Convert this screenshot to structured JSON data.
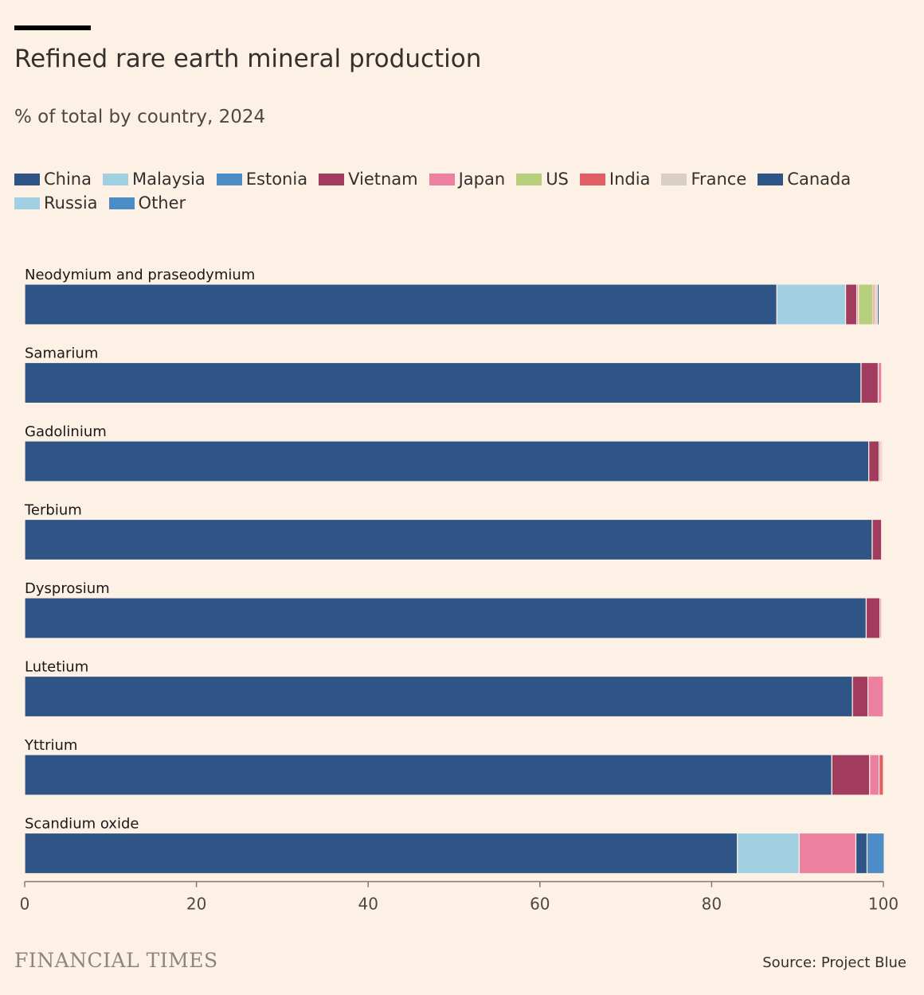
{
  "header": {
    "title": "Refined rare earth mineral production",
    "subtitle": "% of total by country, 2024"
  },
  "legend": [
    {
      "label": "China",
      "color": "#2f5486"
    },
    {
      "label": "Malaysia",
      "color": "#a1d0e2"
    },
    {
      "label": "Estonia",
      "color": "#4c8dc7"
    },
    {
      "label": "Vietnam",
      "color": "#a23c5e"
    },
    {
      "label": "Japan",
      "color": "#ec80a0"
    },
    {
      "label": "US",
      "color": "#b8cf7d"
    },
    {
      "label": "India",
      "color": "#e25f66"
    },
    {
      "label": "France",
      "color": "#d9cfc6"
    },
    {
      "label": "Canada",
      "color": "#2f5486"
    },
    {
      "label": "Russia",
      "color": "#a1d0e2"
    },
    {
      "label": "Other",
      "color": "#4c8dc7"
    }
  ],
  "chart_data": {
    "type": "bar",
    "orientation": "horizontal",
    "stacked": true,
    "title": "Refined rare earth mineral production",
    "subtitle": "% of total by country, 2024",
    "xlim": [
      0,
      100
    ],
    "xticks": [
      0,
      20,
      40,
      60,
      80,
      100
    ],
    "categories": [
      "Neodymium and praseodymium",
      "Samarium",
      "Gadolinium",
      "Terbium",
      "Dysprosium",
      "Lutetium",
      "Yttrium",
      "Scandium oxide"
    ],
    "series": [
      {
        "name": "China",
        "values": [
          87.6,
          97.4,
          98.3,
          98.7,
          98.0,
          96.4,
          94.0,
          83.0
        ]
      },
      {
        "name": "Malaysia",
        "values": [
          8.0,
          0,
          0,
          0,
          0,
          0,
          0,
          7.2
        ]
      },
      {
        "name": "Estonia",
        "values": [
          0,
          0,
          0,
          0,
          0,
          0,
          0,
          0
        ]
      },
      {
        "name": "Vietnam",
        "values": [
          1.3,
          2.0,
          1.2,
          1.1,
          1.6,
          1.8,
          4.4,
          0
        ]
      },
      {
        "name": "Japan",
        "values": [
          0.2,
          0.4,
          0.2,
          0.1,
          0.2,
          1.8,
          1.1,
          6.6
        ]
      },
      {
        "name": "US",
        "values": [
          1.7,
          0,
          0,
          0,
          0,
          0,
          0,
          0
        ]
      },
      {
        "name": "India",
        "values": [
          0.2,
          0,
          0,
          0.1,
          0.1,
          0,
          0.5,
          0
        ]
      },
      {
        "name": "France",
        "values": [
          0.3,
          0,
          0.2,
          0,
          0,
          0,
          0,
          0
        ]
      },
      {
        "name": "Canada",
        "values": [
          0.2,
          0,
          0,
          0,
          0,
          0,
          0,
          1.3
        ]
      },
      {
        "name": "Russia",
        "values": [
          0.1,
          0,
          0,
          0,
          0,
          0,
          0,
          0
        ]
      },
      {
        "name": "Other",
        "values": [
          0.1,
          0,
          0,
          0,
          0,
          0,
          0,
          2.0
        ]
      }
    ]
  },
  "footer": {
    "brand": "FINANCIAL TIMES",
    "source": "Source: Project Blue"
  }
}
